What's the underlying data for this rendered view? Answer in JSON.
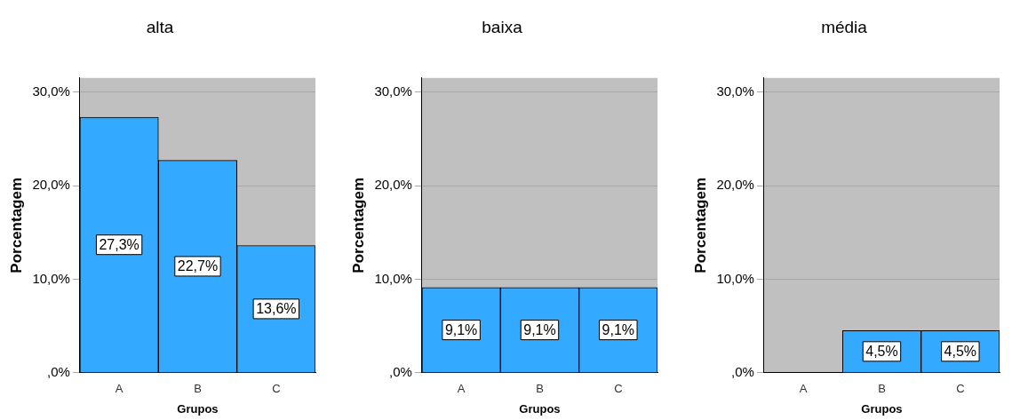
{
  "chart_data": [
    {
      "type": "bar",
      "title": "alta",
      "xlabel": "Grupos",
      "ylabel": "Porcentagem",
      "categories": [
        "A",
        "B",
        "C"
      ],
      "values": [
        27.3,
        22.7,
        13.6
      ],
      "value_labels": [
        "27,3%",
        "22,7%",
        "13,6%"
      ],
      "color": "#33aaff",
      "ylim": [
        0,
        31.5
      ],
      "yticks": [
        {
          "value": 0,
          "label": ",0%"
        },
        {
          "value": 10,
          "label": "10,0%"
        },
        {
          "value": 20,
          "label": "20,0%"
        },
        {
          "value": 30,
          "label": "30,0%"
        }
      ],
      "grid": "y",
      "legend": false
    },
    {
      "type": "bar",
      "title": "baixa",
      "xlabel": "Grupos",
      "ylabel": "Porcentagem",
      "categories": [
        "A",
        "B",
        "C"
      ],
      "values": [
        9.1,
        9.1,
        9.1
      ],
      "value_labels": [
        "9,1%",
        "9,1%",
        "9,1%"
      ],
      "color": "#33aaff",
      "ylim": [
        0,
        31.5
      ],
      "yticks": [
        {
          "value": 0,
          "label": ",0%"
        },
        {
          "value": 10,
          "label": "10,0%"
        },
        {
          "value": 20,
          "label": "20,0%"
        },
        {
          "value": 30,
          "label": "30,0%"
        }
      ],
      "grid": "y",
      "legend": false
    },
    {
      "type": "bar",
      "title": "média",
      "xlabel": "Grupos",
      "ylabel": "Porcentagem",
      "categories": [
        "A",
        "B",
        "C"
      ],
      "values": [
        null,
        4.5,
        4.5
      ],
      "value_labels": [
        null,
        "4,5%",
        "4,5%"
      ],
      "color": "#33aaff",
      "ylim": [
        0,
        31.5
      ],
      "yticks": [
        {
          "value": 0,
          "label": ",0%"
        },
        {
          "value": 10,
          "label": "10,0%"
        },
        {
          "value": 20,
          "label": "20,0%"
        },
        {
          "value": 30,
          "label": "30,0%"
        }
      ],
      "grid": "y",
      "legend": false
    }
  ]
}
